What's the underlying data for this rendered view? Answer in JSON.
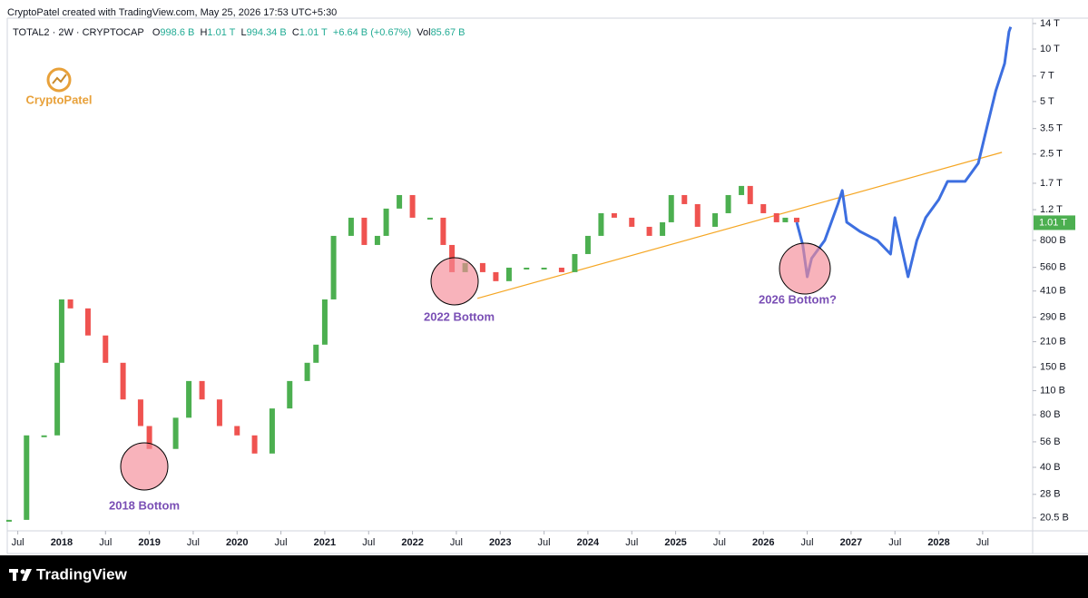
{
  "header": {
    "text": "CryptoPatel created with TradingView.com, May 25, 2026 17:53 UTC+5:30"
  },
  "logo": {
    "text": "CryptoPatel"
  },
  "footer": {
    "brand": "TradingView"
  },
  "chart_data": {
    "type": "candlestick",
    "title": "TOTAL2 · 2W · CRYPTOCAP",
    "ohlc": [
      {
        "label": "O",
        "value": "998.6 B"
      },
      {
        "label": "H",
        "value": "1.01 T"
      },
      {
        "label": "L",
        "value": "994.34 B"
      },
      {
        "label": "C",
        "value": "1.01 T"
      }
    ],
    "change": "+6.64 B (+0.67%)",
    "volume": {
      "label": "Vol",
      "value": "85.67 B"
    },
    "up_color": "#4caf50",
    "down_color": "#ef5350",
    "candles": {
      "x": [
        2017.4,
        2017.6,
        2017.8,
        2017.95,
        2018.0,
        2018.1,
        2018.3,
        2018.5,
        2018.7,
        2018.9,
        2019.0,
        2019.3,
        2019.45,
        2019.6,
        2019.8,
        2020.0,
        2020.2,
        2020.4,
        2020.6,
        2020.8,
        2020.9,
        2021.0,
        2021.1,
        2021.3,
        2021.45,
        2021.6,
        2021.7,
        2021.85,
        2022.0,
        2022.2,
        2022.35,
        2022.45,
        2022.6,
        2022.8,
        2022.95,
        2023.1,
        2023.3,
        2023.5,
        2023.7,
        2023.85,
        2024.0,
        2024.15,
        2024.3,
        2024.5,
        2024.7,
        2024.85,
        2024.95,
        2025.1,
        2025.25,
        2025.45,
        2025.6,
        2025.75,
        2025.85,
        2026.0,
        2026.15,
        2026.25,
        2026.38
      ],
      "values": [
        20,
        61,
        61,
        159,
        367,
        326,
        228,
        159,
        98,
        69,
        51,
        77,
        125,
        98,
        69,
        61,
        48,
        87,
        125,
        159,
        202,
        367,
        849,
        1079,
        753,
        849,
        1217,
        1455,
        1079,
        1079,
        753,
        526,
        593,
        526,
        467,
        558,
        558,
        558,
        526,
        668,
        849,
        1145,
        1079,
        957,
        849,
        1016,
        1455,
        1291,
        957,
        1145,
        1455,
        1641,
        1291,
        1145,
        1016,
        1079,
        1016
      ]
    },
    "projection": {
      "color": "#3d6fe0",
      "x": [
        2026.38,
        2026.45,
        2026.5,
        2026.55,
        2026.7,
        2026.85,
        2026.9,
        2026.95,
        2027.1,
        2027.3,
        2027.45,
        2027.5,
        2027.65,
        2027.75,
        2027.85,
        2028.0,
        2028.1,
        2028.3,
        2028.45,
        2028.55,
        2028.65,
        2028.75,
        2028.8,
        2028.82
      ],
      "values": [
        1016,
        753,
        495,
        630,
        800,
        1291,
        1545,
        1016,
        901,
        800,
        668,
        1079,
        495,
        800,
        1079,
        1371,
        1742,
        1742,
        2213,
        3573,
        5768,
        8260,
        12560,
        13390
      ]
    },
    "trendline": {
      "color": "#f5a623",
      "x": [
        2022.74,
        2028.72
      ],
      "values": [
        372,
        2557
      ]
    },
    "last_price": {
      "value": 1010,
      "label": "1.01 T"
    },
    "annotations": [
      {
        "text": "2018 Bottom"
      },
      {
        "text": "2022 Bottom"
      },
      {
        "text": "2026 Bottom?"
      }
    ],
    "log_scale": true,
    "xlim": [
      2017.38,
      2029.07
    ],
    "xticks": [
      {
        "value": 2017.5,
        "label": "Jul"
      },
      2018,
      {
        "value": 2018.5,
        "label": "Jul"
      },
      2019,
      {
        "value": 2019.5,
        "label": "Jul"
      },
      2020,
      {
        "value": 2020.5,
        "label": "Jul"
      },
      2021,
      {
        "value": 2021.5,
        "label": "Jul"
      },
      2022,
      {
        "value": 2022.5,
        "label": "Jul"
      },
      2023,
      {
        "value": 2023.5,
        "label": "Jul"
      },
      2024,
      {
        "value": 2024.5,
        "label": "Jul"
      },
      2025,
      {
        "value": 2025.5,
        "label": "Jul"
      },
      2026,
      {
        "value": 2026.5,
        "label": "Jul"
      },
      2027,
      {
        "value": 2027.5,
        "label": "Jul"
      },
      2028,
      {
        "value": 2028.5,
        "label": "Jul"
      }
    ],
    "ylim": [
      17.3,
      15030
    ],
    "yticks": [
      {
        "value": 14000,
        "label": "14 T"
      },
      {
        "value": 10000,
        "label": "10 T"
      },
      {
        "value": 7000,
        "label": "7 T"
      },
      {
        "value": 5000,
        "label": "5 T"
      },
      {
        "value": 3500,
        "label": "3.5 T"
      },
      {
        "value": 2500,
        "label": "2.5 T"
      },
      {
        "value": 1700,
        "label": "1.7 T"
      },
      {
        "value": 1200,
        "label": "1.2 T"
      },
      {
        "value": 800,
        "label": "800 B"
      },
      {
        "value": 560,
        "label": "560 B"
      },
      {
        "value": 410,
        "label": "410 B"
      },
      {
        "value": 290,
        "label": "290 B"
      },
      {
        "value": 210,
        "label": "210 B"
      },
      {
        "value": 150,
        "label": "150 B"
      },
      {
        "value": 110,
        "label": "110 B"
      },
      {
        "value": 80,
        "label": "80 B"
      },
      {
        "value": 56,
        "label": "56 B"
      },
      {
        "value": 40,
        "label": "40 B"
      },
      {
        "value": 28,
        "label": "28 B"
      },
      {
        "value": 20.5,
        "label": "20.5 B"
      }
    ]
  }
}
